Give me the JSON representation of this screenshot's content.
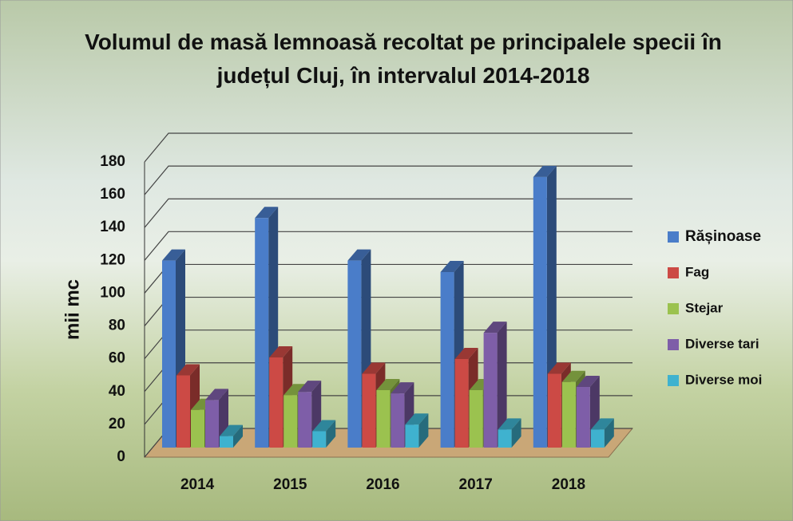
{
  "chart_data": {
    "type": "bar3d",
    "title": "Volumul de masă lemnoasă recoltat pe principalele specii în județul Cluj, în intervalul 2014-2018",
    "y_label": "mii mc",
    "categories": [
      "2014",
      "2015",
      "2016",
      "2017",
      "2018"
    ],
    "series": [
      {
        "name": "Rășinoase",
        "color": "#4a7dc9",
        "values": [
          114,
          140,
          114,
          107,
          165
        ]
      },
      {
        "name": "Fag",
        "color": "#cc4a45",
        "values": [
          44,
          55,
          45,
          54,
          45
        ]
      },
      {
        "name": "Stejar",
        "color": "#9bc24f",
        "values": [
          23,
          32,
          35,
          35,
          40
        ]
      },
      {
        "name": "Diverse tari",
        "color": "#7e5ea8",
        "values": [
          29,
          34,
          33,
          70,
          37
        ]
      },
      {
        "name": "Diverse moi",
        "color": "#3fb2cf",
        "values": [
          7,
          10,
          14,
          11,
          11
        ]
      }
    ],
    "ylim": [
      0,
      180
    ],
    "yticks": [
      0,
      20,
      40,
      60,
      80,
      100,
      120,
      140,
      160,
      180
    ],
    "grid": true,
    "legend": "right"
  }
}
